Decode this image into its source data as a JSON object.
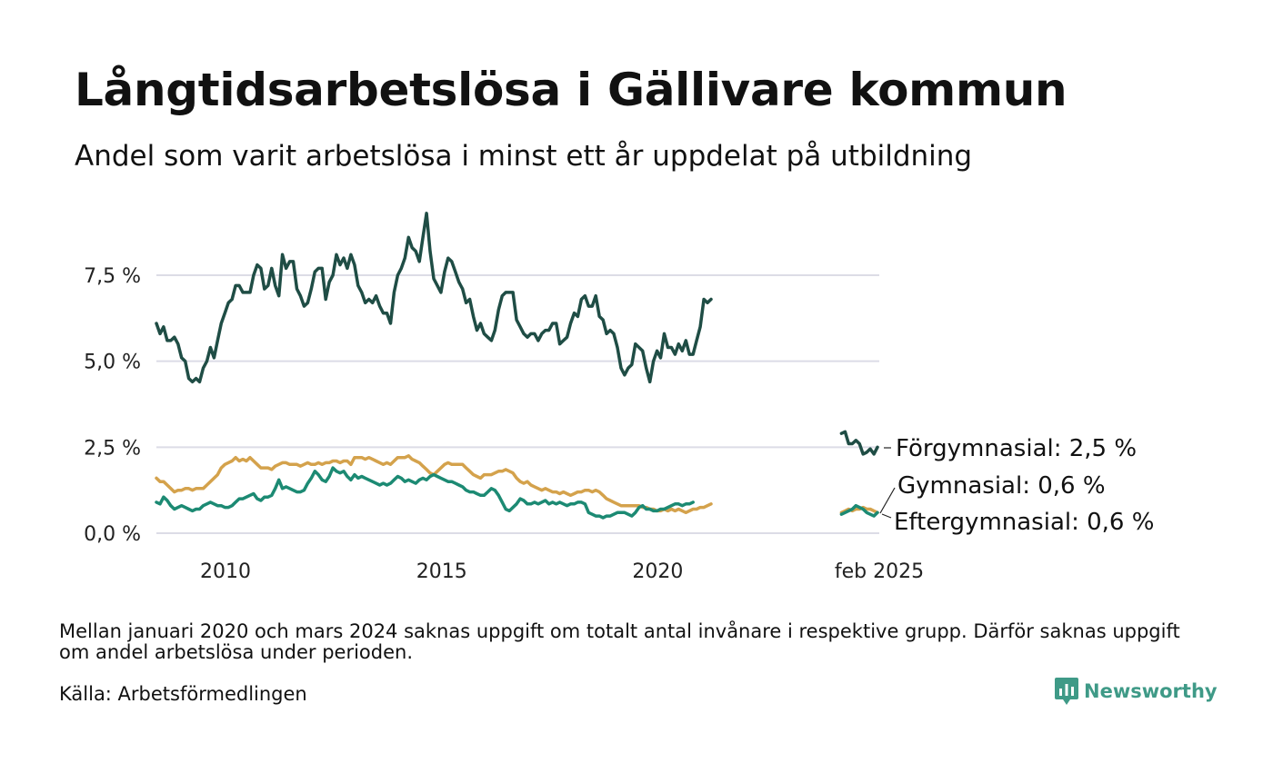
{
  "title": "Långtidsarbetslösa i Gällivare kommun",
  "subtitle": "Andel som varit arbetslösa i minst ett år uppdelat på utbildning",
  "note": "Mellan januari 2020 och mars 2024 saknas uppgift om totalt antal invånare i respektive grupp. Därför saknas uppgift om andel arbetslösa under perioden.",
  "source": "Källa: Arbetsförmedlingen",
  "brand": "Newsworthy",
  "chart_data": {
    "type": "line",
    "y_ticks": [
      "0,0 %",
      "2,5 %",
      "5,0 %",
      "7,5 %"
    ],
    "y_tick_values": [
      0,
      2.5,
      5.0,
      7.5
    ],
    "x_ticks": [
      "2010",
      "2015",
      "2020",
      "feb 2025"
    ],
    "x_tick_values": [
      2010,
      2015,
      2020,
      2025.125
    ],
    "xlim": [
      2008.4,
      2025.125
    ],
    "ylim": [
      0,
      9.5
    ],
    "grid": true,
    "series": [
      {
        "name": "Förgymnasial",
        "label": "Förgymnasial: 2,5 %",
        "color": "#1f4d45",
        "segments": [
          {
            "x_start": 2008.4,
            "x_step": 0.08333,
            "values": [
              6.1,
              5.8,
              6.0,
              5.6,
              5.6,
              5.7,
              5.5,
              5.1,
              5.0,
              4.5,
              4.4,
              4.5,
              4.4,
              4.8,
              5.0,
              5.4,
              5.1,
              5.6,
              6.1,
              6.4,
              6.7,
              6.8,
              7.2,
              7.2,
              7.0,
              7.0,
              7.0,
              7.5,
              7.8,
              7.7,
              7.1,
              7.2,
              7.7,
              7.2,
              6.9,
              8.1,
              7.7,
              7.9,
              7.9,
              7.1,
              6.9,
              6.6,
              6.7,
              7.1,
              7.6,
              7.7,
              7.7,
              6.8,
              7.3,
              7.5,
              8.1,
              7.8,
              8.0,
              7.7,
              8.1,
              7.8,
              7.2,
              7.0,
              6.7,
              6.8,
              6.7,
              6.9,
              6.6,
              6.4,
              6.4,
              6.1,
              7.0,
              7.5,
              7.7,
              8.0,
              8.6,
              8.3,
              8.2,
              7.9,
              8.6,
              9.3,
              8.2,
              7.4,
              7.2,
              7.0,
              7.6,
              8.0,
              7.9,
              7.6,
              7.3,
              7.1,
              6.7,
              6.8,
              6.3,
              5.9,
              6.1,
              5.8,
              5.7,
              5.6,
              5.9,
              6.5,
              6.9,
              7.0,
              7.0,
              7.0,
              6.2,
              6.0,
              5.8,
              5.7,
              5.8,
              5.8,
              5.6,
              5.8,
              5.9,
              5.9,
              6.1,
              6.1,
              5.5,
              5.6,
              5.7,
              6.1,
              6.4,
              6.3,
              6.8,
              6.9,
              6.6,
              6.6,
              6.9,
              6.3,
              6.2,
              5.8,
              5.9,
              5.8,
              5.4,
              4.8,
              4.6,
              4.8,
              4.9,
              5.5,
              5.4,
              5.3,
              4.8,
              4.4,
              5.0,
              5.3,
              5.1,
              5.8,
              5.4,
              5.4,
              5.2,
              5.5,
              5.3,
              5.6,
              5.2,
              5.2,
              5.6,
              6.0,
              6.8,
              6.7,
              6.8
            ]
          },
          {
            "x_start": 2024.25,
            "x_step": 0.08333,
            "values": [
              2.9,
              2.95,
              2.6,
              2.6,
              2.7,
              2.6,
              2.3,
              2.35,
              2.45,
              2.3,
              2.5
            ]
          }
        ]
      },
      {
        "name": "Gymnasial",
        "label": "Gymnasial: 0,6 %",
        "color": "#d4a24c",
        "segments": [
          {
            "x_start": 2008.4,
            "x_step": 0.08333,
            "values": [
              1.6,
              1.5,
              1.5,
              1.4,
              1.3,
              1.2,
              1.25,
              1.25,
              1.3,
              1.3,
              1.25,
              1.3,
              1.3,
              1.3,
              1.4,
              1.5,
              1.6,
              1.7,
              1.9,
              2.0,
              2.05,
              2.1,
              2.2,
              2.1,
              2.15,
              2.1,
              2.2,
              2.1,
              2.0,
              1.9,
              1.9,
              1.9,
              1.85,
              1.95,
              2.0,
              2.05,
              2.05,
              2.0,
              2.0,
              2.0,
              1.95,
              2.0,
              2.05,
              2.0,
              2.0,
              2.05,
              2.0,
              2.05,
              2.05,
              2.1,
              2.1,
              2.05,
              2.1,
              2.1,
              2.0,
              2.2,
              2.2,
              2.2,
              2.15,
              2.2,
              2.15,
              2.1,
              2.05,
              2.0,
              2.05,
              2.0,
              2.1,
              2.2,
              2.2,
              2.2,
              2.25,
              2.15,
              2.1,
              2.05,
              1.95,
              1.85,
              1.75,
              1.7,
              1.8,
              1.9,
              2.0,
              2.05,
              2.0,
              2.0,
              2.0,
              2.0,
              1.9,
              1.8,
              1.7,
              1.65,
              1.6,
              1.7,
              1.7,
              1.7,
              1.75,
              1.8,
              1.8,
              1.85,
              1.8,
              1.75,
              1.6,
              1.5,
              1.45,
              1.5,
              1.4,
              1.35,
              1.3,
              1.25,
              1.3,
              1.25,
              1.2,
              1.2,
              1.15,
              1.2,
              1.15,
              1.1,
              1.15,
              1.2,
              1.2,
              1.25,
              1.25,
              1.2,
              1.25,
              1.2,
              1.1,
              1.0,
              0.95,
              0.9,
              0.85,
              0.8,
              0.8,
              0.8,
              0.8,
              0.8,
              0.8,
              0.75,
              0.75,
              0.7,
              0.7,
              0.65,
              0.65,
              0.7,
              0.65,
              0.7,
              0.65,
              0.7,
              0.65,
              0.6,
              0.65,
              0.7,
              0.7,
              0.75,
              0.75,
              0.8,
              0.85
            ]
          },
          {
            "x_start": 2024.25,
            "x_step": 0.08333,
            "values": [
              0.6,
              0.65,
              0.7,
              0.65,
              0.7,
              0.7,
              0.75,
              0.7,
              0.7,
              0.65,
              0.6
            ]
          }
        ]
      },
      {
        "name": "Eftergymnasial",
        "label": "Eftergymnasial: 0,6 %",
        "color": "#1c8a73",
        "segments": [
          {
            "x_start": 2008.4,
            "x_step": 0.08333,
            "values": [
              0.9,
              0.85,
              1.05,
              0.95,
              0.8,
              0.7,
              0.75,
              0.8,
              0.75,
              0.7,
              0.65,
              0.7,
              0.7,
              0.8,
              0.85,
              0.9,
              0.85,
              0.8,
              0.8,
              0.75,
              0.75,
              0.8,
              0.9,
              1.0,
              1.0,
              1.05,
              1.1,
              1.15,
              1.0,
              0.95,
              1.05,
              1.05,
              1.1,
              1.3,
              1.55,
              1.3,
              1.35,
              1.3,
              1.25,
              1.2,
              1.2,
              1.25,
              1.45,
              1.6,
              1.8,
              1.7,
              1.55,
              1.5,
              1.65,
              1.9,
              1.8,
              1.75,
              1.8,
              1.65,
              1.55,
              1.7,
              1.6,
              1.65,
              1.6,
              1.55,
              1.5,
              1.45,
              1.4,
              1.45,
              1.4,
              1.45,
              1.55,
              1.65,
              1.6,
              1.5,
              1.55,
              1.5,
              1.45,
              1.55,
              1.6,
              1.55,
              1.65,
              1.7,
              1.65,
              1.6,
              1.55,
              1.5,
              1.5,
              1.45,
              1.4,
              1.35,
              1.25,
              1.2,
              1.2,
              1.15,
              1.1,
              1.1,
              1.2,
              1.3,
              1.25,
              1.1,
              0.9,
              0.7,
              0.65,
              0.75,
              0.85,
              1.0,
              0.95,
              0.85,
              0.85,
              0.9,
              0.85,
              0.9,
              0.95,
              0.85,
              0.9,
              0.85,
              0.9,
              0.85,
              0.8,
              0.85,
              0.85,
              0.9,
              0.9,
              0.85,
              0.6,
              0.55,
              0.5,
              0.5,
              0.45,
              0.5,
              0.5,
              0.55,
              0.6,
              0.6,
              0.6,
              0.55,
              0.5,
              0.6,
              0.75,
              0.8,
              0.7,
              0.7,
              0.65,
              0.65,
              0.7,
              0.7,
              0.75,
              0.8,
              0.85,
              0.85,
              0.8,
              0.85,
              0.85,
              0.9
            ]
          },
          {
            "x_start": 2024.25,
            "x_step": 0.08333,
            "values": [
              0.55,
              0.6,
              0.65,
              0.7,
              0.8,
              0.75,
              0.7,
              0.6,
              0.55,
              0.5,
              0.6
            ]
          }
        ]
      }
    ]
  }
}
